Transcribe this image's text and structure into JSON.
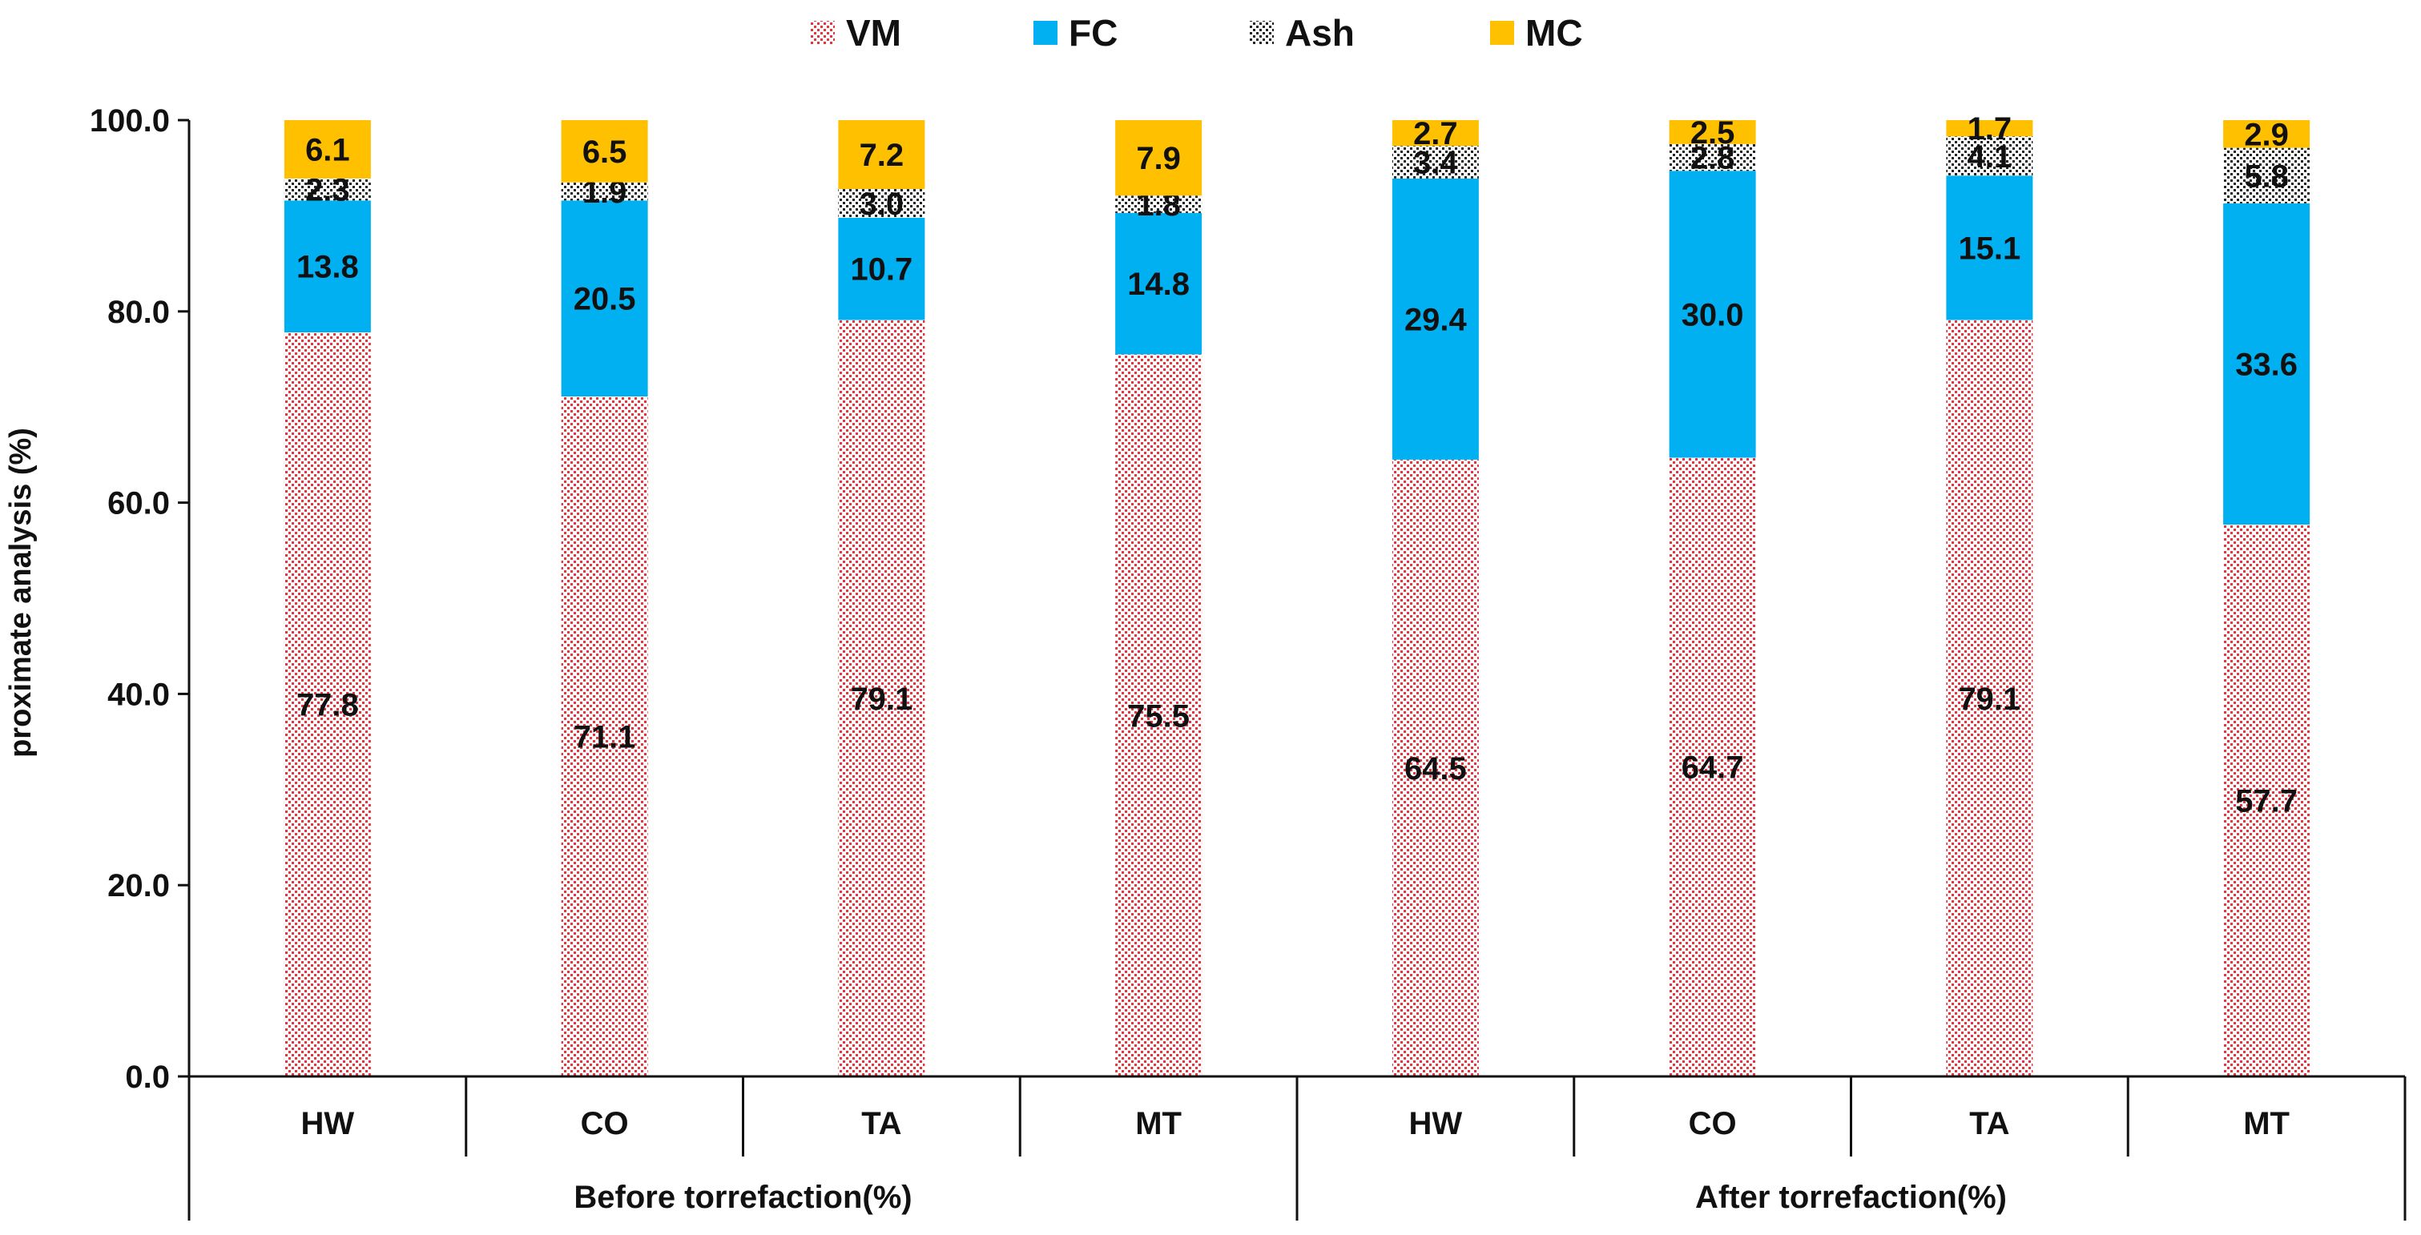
{
  "chart_data": {
    "type": "bar",
    "stacked": true,
    "title": "",
    "xlabel": "",
    "ylabel": "proximate analysis (%)",
    "ylim": [
      0,
      100
    ],
    "yticks": [
      "0.0",
      "20.0",
      "40.0",
      "60.0",
      "80.0",
      "100.0"
    ],
    "grid": false,
    "legend_position": "top-center",
    "categories": [
      "HW",
      "CO",
      "TA",
      "MT",
      "HW",
      "CO",
      "TA",
      "MT"
    ],
    "groups": [
      {
        "label": "Before torrefaction(%)",
        "span": 4
      },
      {
        "label": "After torrefaction(%)",
        "span": 4
      }
    ],
    "series": [
      {
        "name": "VM",
        "color": "#e8323c",
        "pattern": "dots",
        "values": [
          77.8,
          71.1,
          79.1,
          75.5,
          64.5,
          64.7,
          79.1,
          57.7
        ],
        "labels": [
          "77.8",
          "71.1",
          "79.1",
          "75.5",
          "64.5",
          "64.7",
          "79.1",
          "57.7"
        ]
      },
      {
        "name": "FC",
        "color": "#00b0f0",
        "pattern": "solid",
        "values": [
          13.8,
          20.5,
          10.7,
          14.8,
          29.4,
          30.0,
          15.1,
          33.6
        ],
        "labels": [
          "13.8",
          "20.5",
          "10.7",
          "14.8",
          "29.4",
          "30.0",
          "15.1",
          "33.6"
        ]
      },
      {
        "name": "Ash",
        "color": "#222222",
        "pattern": "checker",
        "values": [
          2.3,
          1.9,
          3.0,
          1.8,
          3.4,
          2.8,
          4.1,
          5.8
        ],
        "labels": [
          "2.3",
          "1.9",
          "3.0",
          "1.8",
          "3.4",
          "2.8",
          "4.1",
          "5.8"
        ]
      },
      {
        "name": "MC",
        "color": "#ffc000",
        "pattern": "solid",
        "values": [
          6.1,
          6.5,
          7.2,
          7.9,
          2.7,
          2.5,
          1.7,
          2.9
        ],
        "labels": [
          "6.1",
          "6.5",
          "7.2",
          "7.9",
          "2.7",
          "2.5",
          "1.7",
          "2.9"
        ]
      }
    ]
  }
}
